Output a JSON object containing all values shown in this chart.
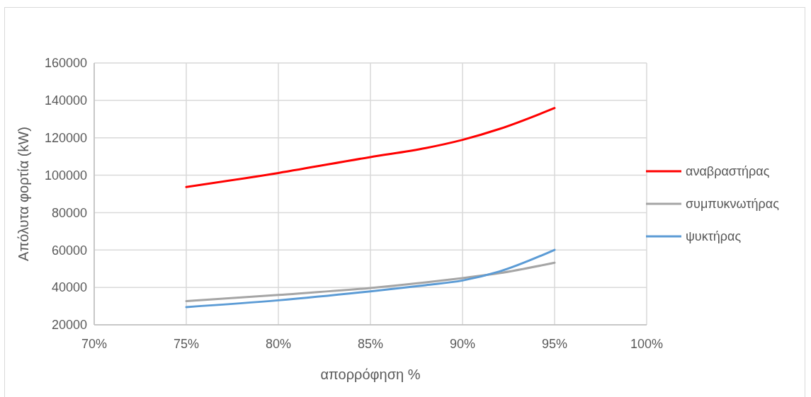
{
  "chart_data": {
    "type": "line",
    "xlabel": "απορρόφηση %",
    "ylabel": "Απόλυτα φορτία (kW)",
    "x": [
      75,
      80,
      85,
      88,
      90,
      92,
      95
    ],
    "series": [
      {
        "name": "αναβραστήρας",
        "color": "#ff0000",
        "values": [
          93700,
          101200,
          109700,
          114500,
          118900,
          124700,
          135900
        ]
      },
      {
        "name": "συμπυκνωτήρας",
        "color": "#a5a5a5",
        "values": [
          32700,
          36000,
          39700,
          42700,
          45000,
          47600,
          53200
        ]
      },
      {
        "name": "ψυκτήρας",
        "color": "#5b9bd5",
        "values": [
          29500,
          33100,
          37900,
          41200,
          43700,
          48500,
          60100
        ]
      }
    ],
    "xlim": [
      70,
      100
    ],
    "xticks": [
      {
        "value": 70,
        "label": "70%"
      },
      {
        "value": 75,
        "label": "75%"
      },
      {
        "value": 80,
        "label": "80%"
      },
      {
        "value": 85,
        "label": "85%"
      },
      {
        "value": 90,
        "label": "90%"
      },
      {
        "value": 95,
        "label": "95%"
      },
      {
        "value": 100,
        "label": "100%"
      }
    ],
    "ylim": [
      20000,
      160000
    ],
    "yticks": [
      20000,
      40000,
      60000,
      80000,
      100000,
      120000,
      140000,
      160000
    ],
    "grid": true,
    "legend": "right",
    "marker": "none",
    "line_style": "solid"
  }
}
